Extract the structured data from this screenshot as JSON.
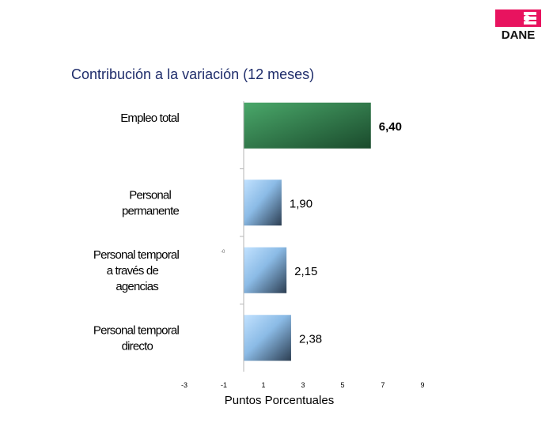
{
  "header": {
    "logo_text": "DANE",
    "title": "Contribución a la variación (12 meses)"
  },
  "colors": {
    "title": "#1f2d6b",
    "total_bar_light": "#4aa86a",
    "total_bar_dark": "#1a4a2c",
    "bar_light": "#a9d4f5",
    "bar_dark": "#2c3e52",
    "logo_pink": "#e8135f"
  },
  "chart_data": {
    "type": "bar",
    "orientation": "horizontal",
    "title": "Contribución a la variación (12 meses)",
    "xlabel": "Puntos Porcentuales",
    "ylabel": "",
    "xlim": [
      -3,
      9
    ],
    "xticks": [
      "-3",
      "-1",
      "1",
      "3",
      "5",
      "7",
      "9"
    ],
    "categories": [
      {
        "lines": [
          "Empleo total"
        ]
      },
      {
        "lines": [
          "Personal",
          "permanente"
        ]
      },
      {
        "lines": [
          "Personal temporal",
          "a través de",
          "agencias"
        ]
      },
      {
        "lines": [
          "Personal temporal",
          "directo"
        ]
      }
    ],
    "values": [
      6.4,
      1.9,
      2.15,
      2.38
    ],
    "value_labels": [
      "6,40",
      "1,90",
      "2,15",
      "2,38"
    ],
    "stray_mark": "-0"
  }
}
